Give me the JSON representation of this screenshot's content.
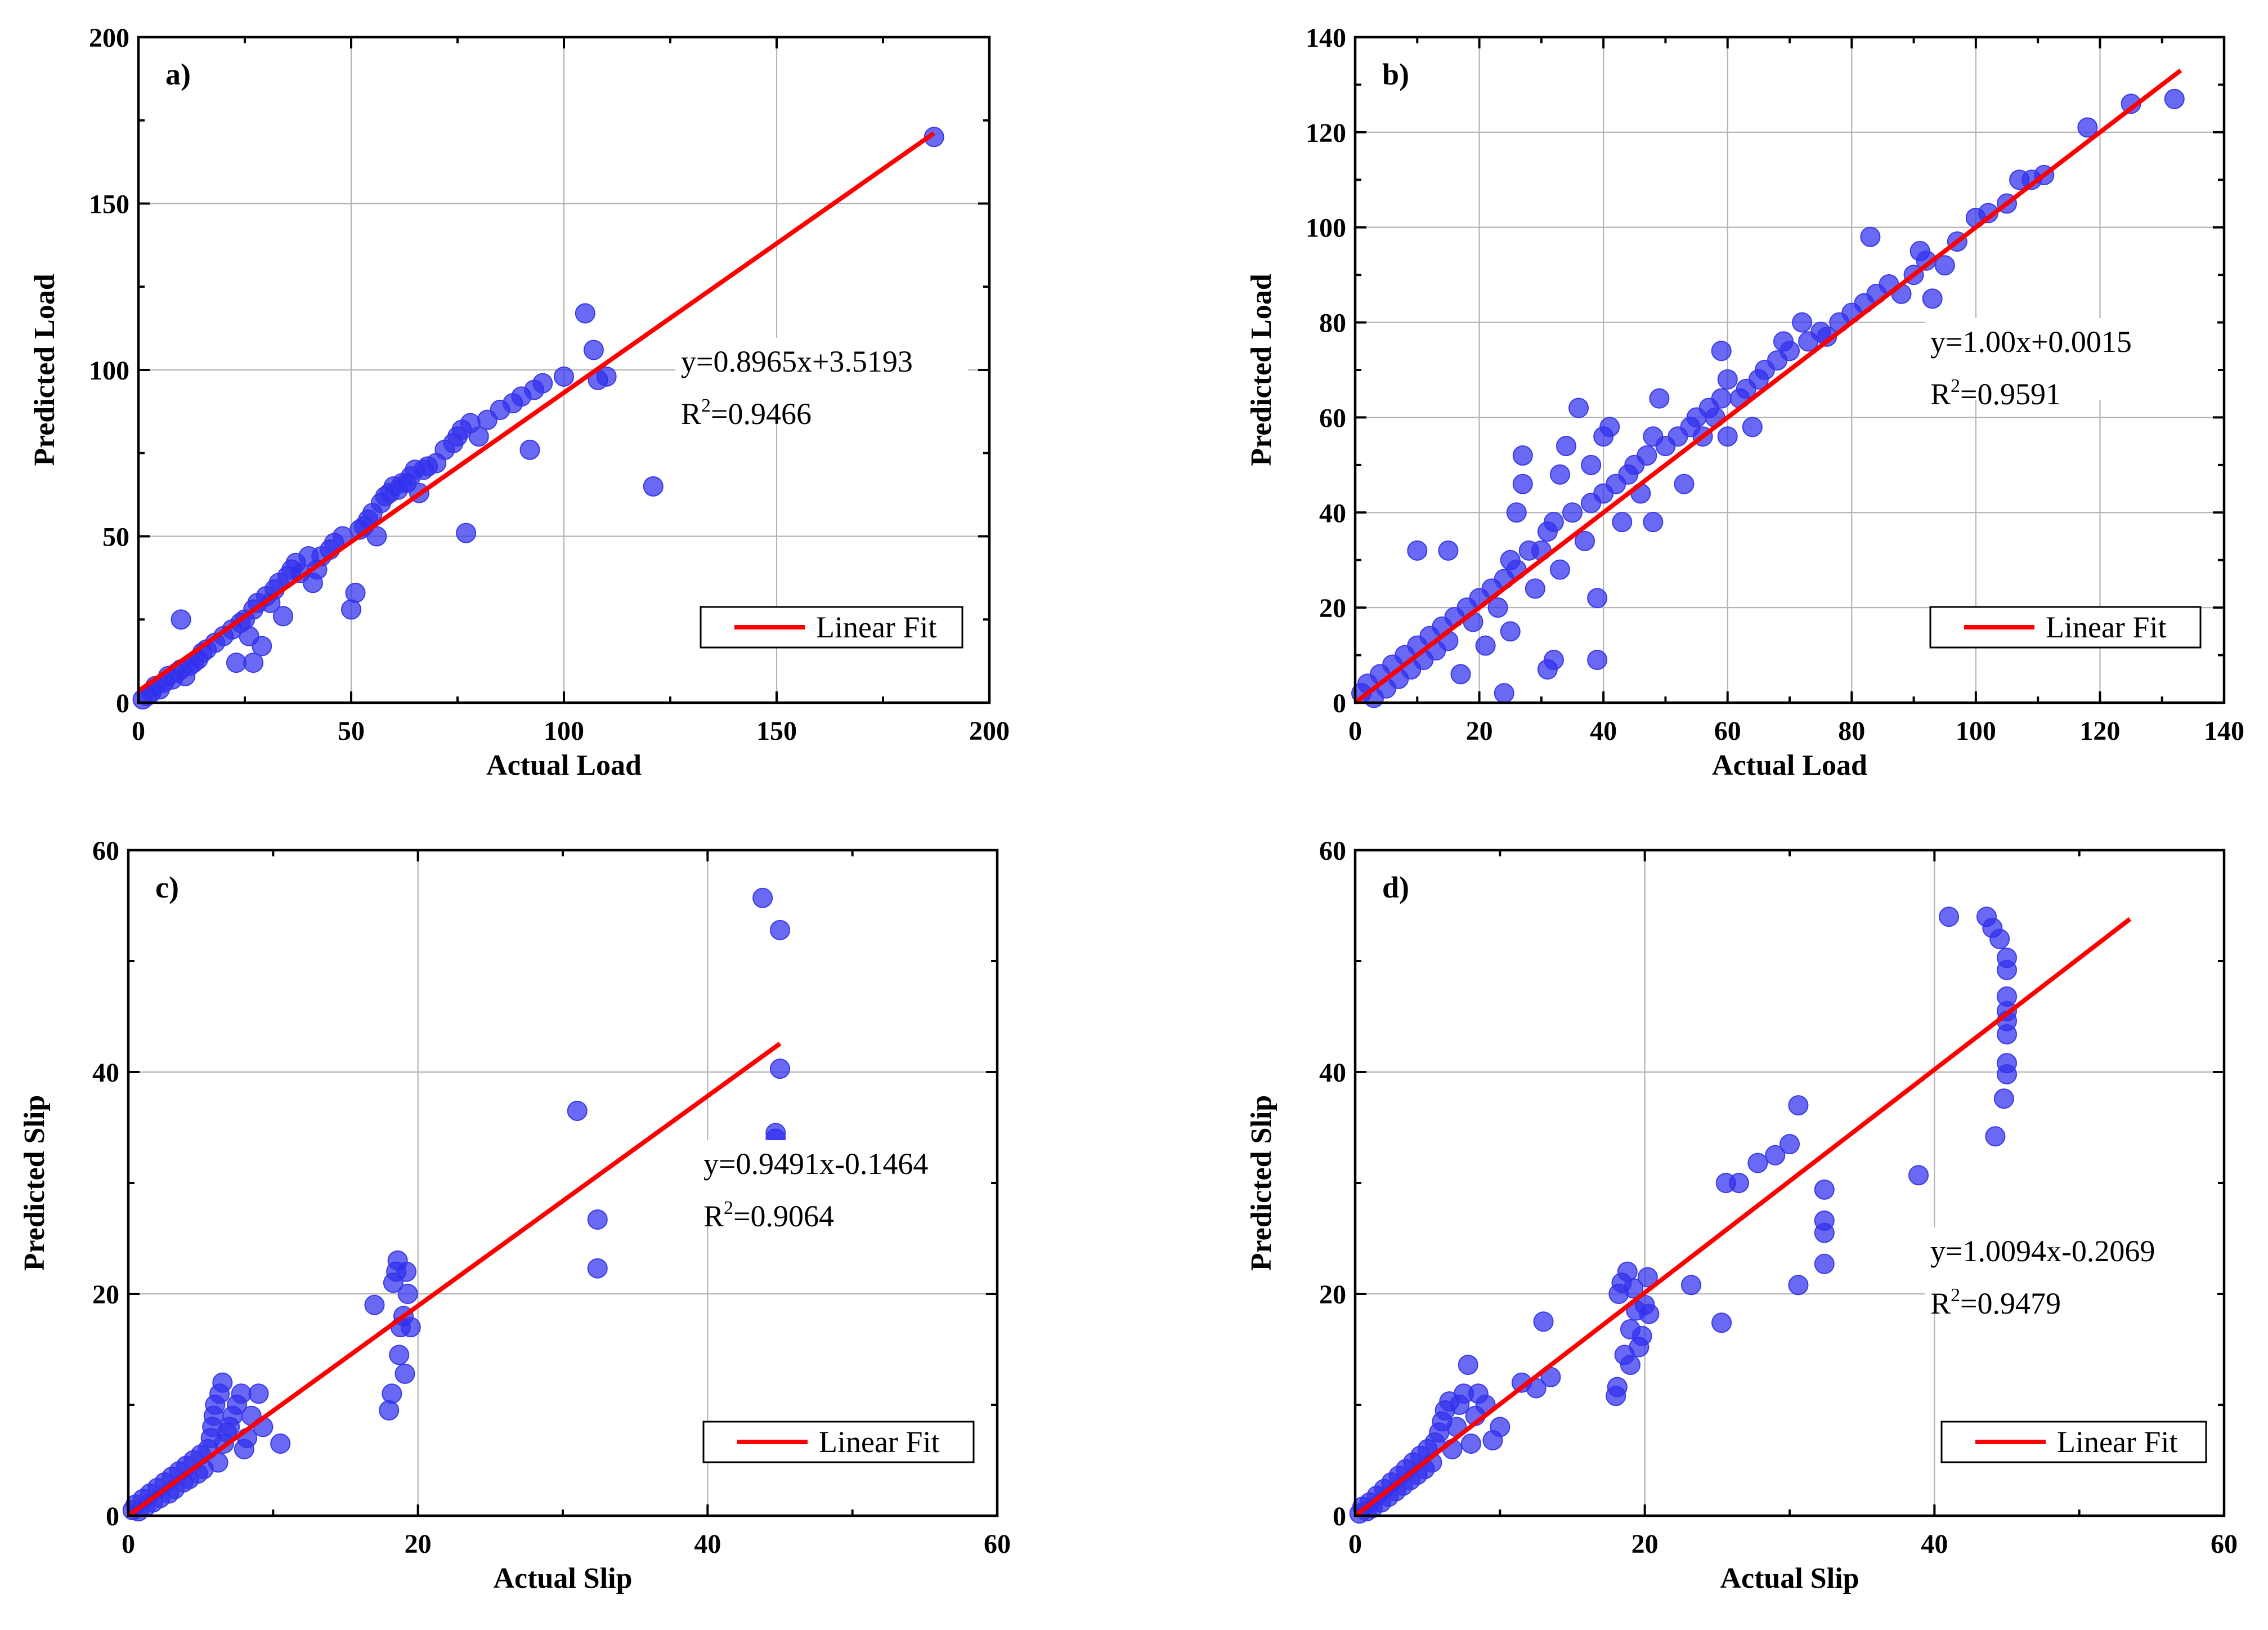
{
  "colors": {
    "points": "#2f2fef",
    "fit": "#ff0000",
    "grid": "#b4b4b4"
  },
  "chart_data": [
    {
      "panel": "a)",
      "type": "scatter",
      "xlabel": "Actual Load",
      "ylabel": "Predicted Load",
      "xlim": [
        0,
        200
      ],
      "ylim": [
        0,
        200
      ],
      "xticks": [
        0,
        50,
        100,
        150,
        200
      ],
      "yticks": [
        0,
        50,
        100,
        150,
        200
      ],
      "minor_x": 25,
      "minor_y": 25,
      "equation": "y=0.8965x+3.5193",
      "r2_prefix": "R",
      "r2_sup": "2",
      "r2_value": "=0.9466",
      "legend": "Linear Fit",
      "fit": {
        "slope": 0.8965,
        "intercept": 3.5193,
        "x_range": [
          0,
          187
        ]
      },
      "points": [
        [
          1,
          1
        ],
        [
          2,
          2
        ],
        [
          3,
          3
        ],
        [
          4,
          5
        ],
        [
          5,
          4
        ],
        [
          6,
          6
        ],
        [
          7,
          8
        ],
        [
          8,
          7
        ],
        [
          9,
          9
        ],
        [
          10,
          10
        ],
        [
          11,
          8
        ],
        [
          12,
          11
        ],
        [
          13,
          12
        ],
        [
          14,
          13
        ],
        [
          15,
          15
        ],
        [
          10,
          25
        ],
        [
          16,
          16
        ],
        [
          18,
          18
        ],
        [
          20,
          20
        ],
        [
          22,
          22
        ],
        [
          23,
          12
        ],
        [
          24,
          24
        ],
        [
          25,
          25
        ],
        [
          26,
          20
        ],
        [
          27,
          12
        ],
        [
          27,
          28
        ],
        [
          28,
          30
        ],
        [
          29,
          17
        ],
        [
          30,
          32
        ],
        [
          31,
          30
        ],
        [
          32,
          34
        ],
        [
          33,
          36
        ],
        [
          34,
          26
        ],
        [
          35,
          38
        ],
        [
          36,
          40
        ],
        [
          37,
          42
        ],
        [
          38,
          39
        ],
        [
          40,
          44
        ],
        [
          41,
          36
        ],
        [
          42,
          40
        ],
        [
          43,
          44
        ],
        [
          45,
          46
        ],
        [
          46,
          48
        ],
        [
          48,
          50
        ],
        [
          50,
          28
        ],
        [
          51,
          33
        ],
        [
          52,
          52
        ],
        [
          53,
          53
        ],
        [
          54,
          55
        ],
        [
          55,
          57
        ],
        [
          56,
          50
        ],
        [
          57,
          60
        ],
        [
          58,
          62
        ],
        [
          59,
          63
        ],
        [
          60,
          65
        ],
        [
          61,
          64
        ],
        [
          62,
          66
        ],
        [
          63,
          66
        ],
        [
          64,
          68
        ],
        [
          65,
          70
        ],
        [
          66,
          63
        ],
        [
          67,
          70
        ],
        [
          68,
          71
        ],
        [
          70,
          72
        ],
        [
          72,
          76
        ],
        [
          74,
          78
        ],
        [
          75,
          80
        ],
        [
          76,
          82
        ],
        [
          77,
          51
        ],
        [
          78,
          84
        ],
        [
          80,
          80
        ],
        [
          82,
          85
        ],
        [
          85,
          88
        ],
        [
          88,
          90
        ],
        [
          90,
          92
        ],
        [
          92,
          76
        ],
        [
          93,
          94
        ],
        [
          95,
          96
        ],
        [
          100,
          98
        ],
        [
          105,
          117
        ],
        [
          107,
          106
        ],
        [
          108,
          97
        ],
        [
          110,
          98
        ],
        [
          121,
          65
        ],
        [
          187,
          170
        ]
      ]
    },
    {
      "panel": "b)",
      "type": "scatter",
      "xlabel": "Actual Load",
      "ylabel": "Predicted Load",
      "xlim": [
        0,
        140
      ],
      "ylim": [
        0,
        140
      ],
      "xticks": [
        0,
        20,
        40,
        60,
        80,
        100,
        120,
        140
      ],
      "yticks": [
        0,
        20,
        40,
        60,
        80,
        100,
        120,
        140
      ],
      "minor_x": 10,
      "minor_y": 10,
      "equation": "y=1.00x+0.0015",
      "r2_prefix": "R",
      "r2_sup": "2",
      "r2_value": "=0.9591",
      "legend": "Linear Fit",
      "fit": {
        "slope": 1.0,
        "intercept": 0.0015,
        "x_range": [
          0,
          133
        ]
      },
      "points": [
        [
          1,
          2
        ],
        [
          2,
          4
        ],
        [
          3,
          1
        ],
        [
          4,
          6
        ],
        [
          5,
          3
        ],
        [
          6,
          8
        ],
        [
          7,
          5
        ],
        [
          8,
          10
        ],
        [
          9,
          7
        ],
        [
          10,
          12
        ],
        [
          10,
          32
        ],
        [
          11,
          9
        ],
        [
          12,
          14
        ],
        [
          13,
          11
        ],
        [
          14,
          16
        ],
        [
          15,
          13
        ],
        [
          15,
          32
        ],
        [
          16,
          18
        ],
        [
          17,
          6
        ],
        [
          18,
          20
        ],
        [
          19,
          17
        ],
        [
          20,
          22
        ],
        [
          21,
          12
        ],
        [
          22,
          24
        ],
        [
          23,
          20
        ],
        [
          24,
          2
        ],
        [
          24,
          26
        ],
        [
          25,
          15
        ],
        [
          25,
          30
        ],
        [
          26,
          28
        ],
        [
          26,
          40
        ],
        [
          27,
          46
        ],
        [
          27,
          52
        ],
        [
          28,
          32
        ],
        [
          29,
          24
        ],
        [
          30,
          32
        ],
        [
          31,
          7
        ],
        [
          31,
          36
        ],
        [
          32,
          9
        ],
        [
          32,
          38
        ],
        [
          33,
          28
        ],
        [
          33,
          48
        ],
        [
          34,
          54
        ],
        [
          35,
          40
        ],
        [
          36,
          62
        ],
        [
          37,
          34
        ],
        [
          38,
          42
        ],
        [
          38,
          50
        ],
        [
          39,
          22
        ],
        [
          39,
          9
        ],
        [
          40,
          44
        ],
        [
          40,
          56
        ],
        [
          41,
          58
        ],
        [
          42,
          46
        ],
        [
          43,
          38
        ],
        [
          44,
          48
        ],
        [
          45,
          50
        ],
        [
          46,
          44
        ],
        [
          47,
          52
        ],
        [
          48,
          56
        ],
        [
          48,
          38
        ],
        [
          49,
          64
        ],
        [
          50,
          54
        ],
        [
          52,
          56
        ],
        [
          53,
          46
        ],
        [
          54,
          58
        ],
        [
          55,
          60
        ],
        [
          56,
          56
        ],
        [
          57,
          62
        ],
        [
          58,
          60
        ],
        [
          59,
          64
        ],
        [
          59,
          74
        ],
        [
          60,
          68
        ],
        [
          60,
          56
        ],
        [
          62,
          64
        ],
        [
          63,
          66
        ],
        [
          64,
          58
        ],
        [
          65,
          68
        ],
        [
          66,
          70
        ],
        [
          68,
          72
        ],
        [
          69,
          76
        ],
        [
          70,
          74
        ],
        [
          72,
          80
        ],
        [
          73,
          76
        ],
        [
          75,
          78
        ],
        [
          76,
          77
        ],
        [
          78,
          80
        ],
        [
          80,
          82
        ],
        [
          82,
          84
        ],
        [
          83,
          98
        ],
        [
          84,
          86
        ],
        [
          86,
          88
        ],
        [
          88,
          86
        ],
        [
          90,
          90
        ],
        [
          91,
          95
        ],
        [
          92,
          93
        ],
        [
          93,
          85
        ],
        [
          95,
          92
        ],
        [
          97,
          97
        ],
        [
          100,
          102
        ],
        [
          102,
          103
        ],
        [
          105,
          105
        ],
        [
          107,
          110
        ],
        [
          109,
          110
        ],
        [
          111,
          111
        ],
        [
          118,
          121
        ],
        [
          125,
          126
        ],
        [
          132,
          127
        ]
      ]
    },
    {
      "panel": "c)",
      "type": "scatter",
      "xlabel": "Actual Slip",
      "ylabel": "Predicted Slip",
      "xlim": [
        0,
        60
      ],
      "ylim": [
        0,
        60
      ],
      "xticks": [
        0,
        20,
        40,
        60
      ],
      "yticks": [
        0,
        20,
        40,
        60
      ],
      "minor_x": 10,
      "minor_y": 10,
      "equation": "y=0.9491x-0.1464",
      "r2_prefix": "R",
      "r2_sup": "2",
      "r2_value": "=0.9064",
      "legend": "Linear Fit",
      "fit": {
        "slope": 0.9491,
        "intercept": -0.1464,
        "x_range": [
          0,
          45
        ]
      },
      "points": [
        [
          0.3,
          0.5
        ],
        [
          0.5,
          1
        ],
        [
          0.7,
          0.4
        ],
        [
          1,
          1.5
        ],
        [
          1.2,
          0.8
        ],
        [
          1.5,
          2
        ],
        [
          1.7,
          1.2
        ],
        [
          2,
          2.5
        ],
        [
          2.2,
          1.6
        ],
        [
          2.5,
          3
        ],
        [
          2.8,
          2
        ],
        [
          3,
          3.5
        ],
        [
          3.2,
          2.4
        ],
        [
          3.5,
          4
        ],
        [
          3.8,
          3
        ],
        [
          4,
          4.5
        ],
        [
          4.2,
          3.3
        ],
        [
          4.5,
          5
        ],
        [
          4.8,
          3.8
        ],
        [
          5,
          5.5
        ],
        [
          5.2,
          4.2
        ],
        [
          5.5,
          6
        ],
        [
          5.7,
          7
        ],
        [
          5.8,
          8
        ],
        [
          5.9,
          9
        ],
        [
          6,
          10
        ],
        [
          6.2,
          4.8
        ],
        [
          6.3,
          11
        ],
        [
          6.5,
          12
        ],
        [
          6.6,
          6.5
        ],
        [
          6.8,
          7.5
        ],
        [
          7,
          8
        ],
        [
          7.2,
          9
        ],
        [
          7.5,
          10
        ],
        [
          7.8,
          11
        ],
        [
          8,
          6
        ],
        [
          8.2,
          7
        ],
        [
          8.5,
          9
        ],
        [
          9,
          11
        ],
        [
          9.3,
          8
        ],
        [
          10.5,
          6.5
        ],
        [
          17,
          19
        ],
        [
          18,
          9.5
        ],
        [
          18.2,
          11
        ],
        [
          18.3,
          21
        ],
        [
          18.5,
          22
        ],
        [
          18.6,
          23
        ],
        [
          18.7,
          14.5
        ],
        [
          18.8,
          17
        ],
        [
          19,
          18
        ],
        [
          19.1,
          12.8
        ],
        [
          19.2,
          22
        ],
        [
          19.3,
          20
        ],
        [
          19.5,
          17
        ],
        [
          31,
          36.5
        ],
        [
          32.4,
          26.7
        ],
        [
          32.4,
          22.3
        ],
        [
          43.8,
          55.7
        ],
        [
          44.7,
          34
        ],
        [
          44.7,
          34.5
        ],
        [
          45,
          52.8
        ],
        [
          45,
          40.3
        ]
      ]
    },
    {
      "panel": "d)",
      "type": "scatter",
      "xlabel": "Actual Slip",
      "ylabel": "Predicted Slip",
      "xlim": [
        0,
        60
      ],
      "ylim": [
        0,
        60
      ],
      "xticks": [
        0,
        20,
        40,
        60
      ],
      "yticks": [
        0,
        20,
        40,
        60
      ],
      "minor_x": 10,
      "minor_y": 10,
      "equation": "y=1.0094x-0.2069",
      "r2_prefix": "R",
      "r2_sup": "2",
      "r2_value": "=0.9479",
      "legend": "Linear Fit",
      "fit": {
        "slope": 1.0094,
        "intercept": -0.2069,
        "x_range": [
          0,
          53.5
        ]
      },
      "points": [
        [
          0.3,
          0.2
        ],
        [
          0.5,
          0.8
        ],
        [
          0.8,
          0.4
        ],
        [
          1,
          1.2
        ],
        [
          1.2,
          0.7
        ],
        [
          1.5,
          1.8
        ],
        [
          1.8,
          1.2
        ],
        [
          2,
          2.4
        ],
        [
          2.3,
          1.7
        ],
        [
          2.5,
          3
        ],
        [
          2.8,
          2.2
        ],
        [
          3,
          3.6
        ],
        [
          3.3,
          2.7
        ],
        [
          3.5,
          4.2
        ],
        [
          3.8,
          3.2
        ],
        [
          4,
          4.8
        ],
        [
          4.3,
          3.7
        ],
        [
          4.5,
          5.4
        ],
        [
          4.8,
          4.2
        ],
        [
          5,
          6
        ],
        [
          5.3,
          4.8
        ],
        [
          5.5,
          6.6
        ],
        [
          5.8,
          7.5
        ],
        [
          6,
          8.5
        ],
        [
          6.2,
          9.5
        ],
        [
          6.5,
          10.3
        ],
        [
          6.7,
          6
        ],
        [
          7,
          8
        ],
        [
          7.2,
          10
        ],
        [
          7.5,
          11
        ],
        [
          7.8,
          13.6
        ],
        [
          8,
          6.5
        ],
        [
          8.3,
          9
        ],
        [
          8.5,
          11
        ],
        [
          9,
          10
        ],
        [
          9.5,
          6.8
        ],
        [
          10,
          8
        ],
        [
          11.5,
          12
        ],
        [
          12.5,
          11.5
        ],
        [
          13,
          17.5
        ],
        [
          13.5,
          12.5
        ],
        [
          18,
          10.8
        ],
        [
          18.1,
          11.6
        ],
        [
          18.2,
          20
        ],
        [
          18.4,
          21
        ],
        [
          18.6,
          14.5
        ],
        [
          18.8,
          22
        ],
        [
          19,
          16.8
        ],
        [
          19,
          13.6
        ],
        [
          19.2,
          20.5
        ],
        [
          19.4,
          18.5
        ],
        [
          19.6,
          15.2
        ],
        [
          19.8,
          16.2
        ],
        [
          20,
          19
        ],
        [
          20.2,
          21.5
        ],
        [
          20.3,
          18.2
        ],
        [
          23.2,
          20.8
        ],
        [
          25.3,
          17.4
        ],
        [
          25.6,
          30
        ],
        [
          26.5,
          30
        ],
        [
          27.8,
          31.8
        ],
        [
          29,
          32.5
        ],
        [
          30,
          33.5
        ],
        [
          30.6,
          37
        ],
        [
          30.6,
          20.8
        ],
        [
          32.4,
          29.4
        ],
        [
          32.4,
          26.6
        ],
        [
          32.4,
          25.5
        ],
        [
          32.4,
          22.7
        ],
        [
          38.9,
          30.7
        ],
        [
          41,
          54
        ],
        [
          43.6,
          54
        ],
        [
          44,
          53
        ],
        [
          44.2,
          34.2
        ],
        [
          44.5,
          52
        ],
        [
          44.8,
          37.6
        ],
        [
          45,
          50.3
        ],
        [
          45,
          49.2
        ],
        [
          45,
          46.8
        ],
        [
          45,
          45.5
        ],
        [
          45,
          44.6
        ],
        [
          45,
          43.4
        ],
        [
          45,
          40.8
        ],
        [
          45,
          39.8
        ]
      ]
    }
  ]
}
